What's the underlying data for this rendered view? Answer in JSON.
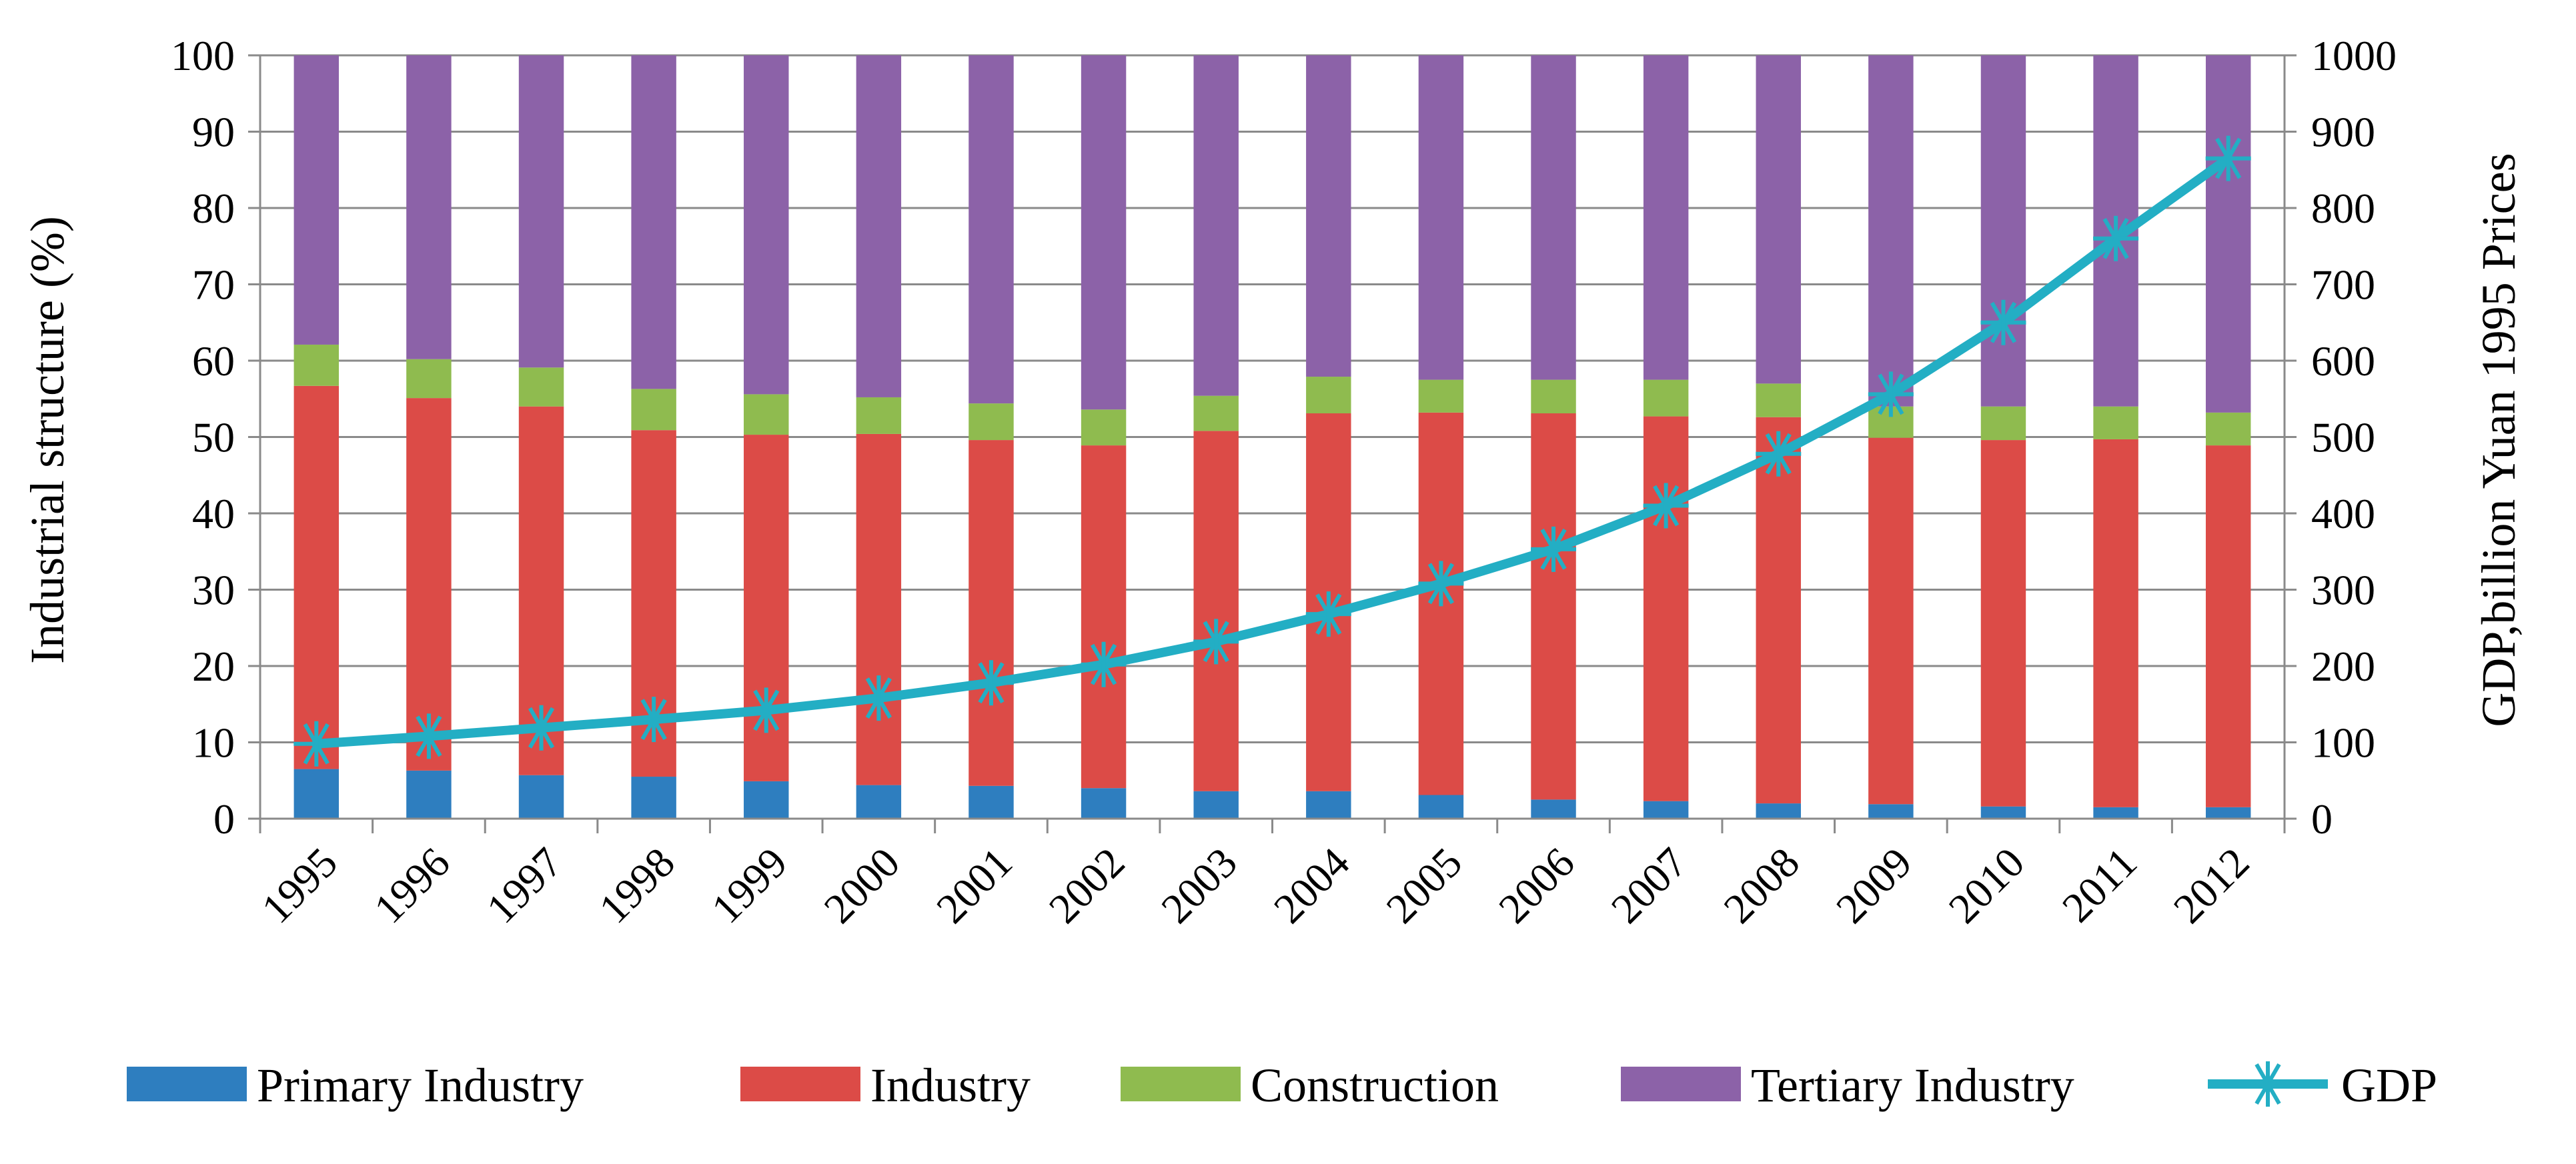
{
  "chart_data": {
    "type": "bar",
    "stacked": true,
    "title": "",
    "xlabel": "",
    "ylabel": "Industrial structure (%)",
    "y2label": "GDP,billion Yuan 1995 Prices",
    "ylim": [
      0,
      100
    ],
    "y2lim": [
      0,
      1000
    ],
    "yticks": [
      "0",
      "10",
      "20",
      "30",
      "40",
      "50",
      "60",
      "70",
      "80",
      "90",
      "100"
    ],
    "y2ticks": [
      "0",
      "100",
      "200",
      "300",
      "400",
      "500",
      "600",
      "700",
      "800",
      "900",
      "1000"
    ],
    "categories": [
      "1995",
      "1996",
      "1997",
      "1998",
      "1999",
      "2000",
      "2001",
      "2002",
      "2003",
      "2004",
      "2005",
      "2006",
      "2007",
      "2008",
      "2009",
      "2010",
      "2011",
      "2012"
    ],
    "series": [
      {
        "name": "Primary Industry",
        "type": "bar",
        "color": "#2e7ebf",
        "values": [
          6.5,
          6.3,
          5.7,
          5.5,
          4.9,
          4.4,
          4.3,
          4.0,
          3.6,
          3.6,
          3.1,
          2.5,
          2.3,
          2.0,
          1.9,
          1.6,
          1.5,
          1.5
        ]
      },
      {
        "name": "Industry",
        "type": "bar",
        "color": "#dc4b47",
        "values": [
          50.2,
          48.8,
          48.3,
          45.4,
          45.4,
          46.0,
          45.3,
          44.9,
          47.2,
          49.5,
          50.1,
          50.6,
          50.4,
          50.6,
          48.0,
          48.0,
          48.2,
          47.4
        ]
      },
      {
        "name": "Construction",
        "type": "bar",
        "color": "#8fbb4f",
        "values": [
          5.4,
          5.1,
          5.1,
          5.4,
          5.3,
          4.8,
          4.8,
          4.7,
          4.6,
          4.8,
          4.3,
          4.4,
          4.8,
          4.4,
          4.1,
          4.4,
          4.3,
          4.3
        ]
      },
      {
        "name": "Tertiary Industry",
        "type": "bar",
        "color": "#8c62a8",
        "values": [
          37.9,
          39.8,
          40.9,
          43.7,
          44.4,
          44.8,
          45.6,
          46.4,
          44.6,
          42.1,
          42.5,
          42.5,
          42.5,
          43.0,
          46.0,
          46.0,
          46.0,
          46.8
        ]
      },
      {
        "name": "GDP",
        "type": "line",
        "axis": "right",
        "color": "#23aec4",
        "values": [
          98,
          108,
          119,
          130,
          142,
          158,
          178,
          202,
          232,
          268,
          308,
          353,
          410,
          478,
          556,
          650,
          760,
          865
        ]
      }
    ],
    "legend": "bottom",
    "grid": true
  }
}
